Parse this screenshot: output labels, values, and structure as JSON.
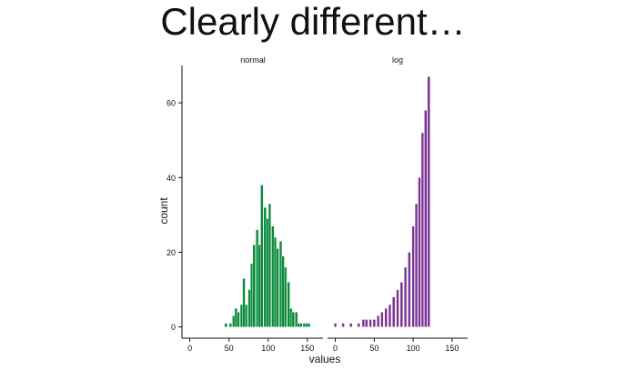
{
  "title": "Clearly different…",
  "colors": {
    "normal": "#0a8a3a",
    "log": "#7b3294"
  },
  "chart_data": {
    "type": "bar",
    "subtype": "histogram-facets",
    "xlabel": "values",
    "ylabel": "count",
    "xlim": [
      -10,
      170
    ],
    "ylim": [
      -3,
      70
    ],
    "x_ticks": [
      0,
      50,
      100,
      150
    ],
    "y_ticks": [
      0,
      20,
      40,
      60
    ],
    "bin_width": 3.3,
    "grid": false,
    "facets": [
      {
        "name": "normal",
        "bins": [
          [
            46,
            1
          ],
          [
            52,
            1
          ],
          [
            56,
            3
          ],
          [
            59,
            5
          ],
          [
            62,
            4
          ],
          [
            66,
            6
          ],
          [
            69,
            13
          ],
          [
            72,
            6
          ],
          [
            76,
            10
          ],
          [
            79,
            17
          ],
          [
            82,
            22
          ],
          [
            86,
            26
          ],
          [
            89,
            22
          ],
          [
            92,
            38
          ],
          [
            96,
            32
          ],
          [
            99,
            29
          ],
          [
            102,
            33
          ],
          [
            106,
            27
          ],
          [
            109,
            24
          ],
          [
            112,
            21
          ],
          [
            116,
            23
          ],
          [
            119,
            19
          ],
          [
            122,
            16
          ],
          [
            126,
            12
          ],
          [
            129,
            5
          ],
          [
            132,
            4
          ],
          [
            136,
            4
          ],
          [
            139,
            1
          ],
          [
            142,
            1
          ],
          [
            146,
            1
          ],
          [
            149,
            1
          ],
          [
            152,
            1
          ]
        ]
      },
      {
        "name": "log",
        "bins": [
          [
            0,
            1
          ],
          [
            10,
            1
          ],
          [
            20,
            1
          ],
          [
            30,
            1
          ],
          [
            36,
            2
          ],
          [
            40,
            2
          ],
          [
            45,
            2
          ],
          [
            50,
            2
          ],
          [
            55,
            3
          ],
          [
            60,
            4
          ],
          [
            65,
            5
          ],
          [
            70,
            6
          ],
          [
            75,
            8
          ],
          [
            80,
            10
          ],
          [
            85,
            12
          ],
          [
            90,
            16
          ],
          [
            95,
            20
          ],
          [
            100,
            27
          ],
          [
            104,
            33
          ],
          [
            108,
            40
          ],
          [
            112,
            52
          ],
          [
            116,
            58
          ],
          [
            120,
            67
          ]
        ]
      }
    ]
  }
}
